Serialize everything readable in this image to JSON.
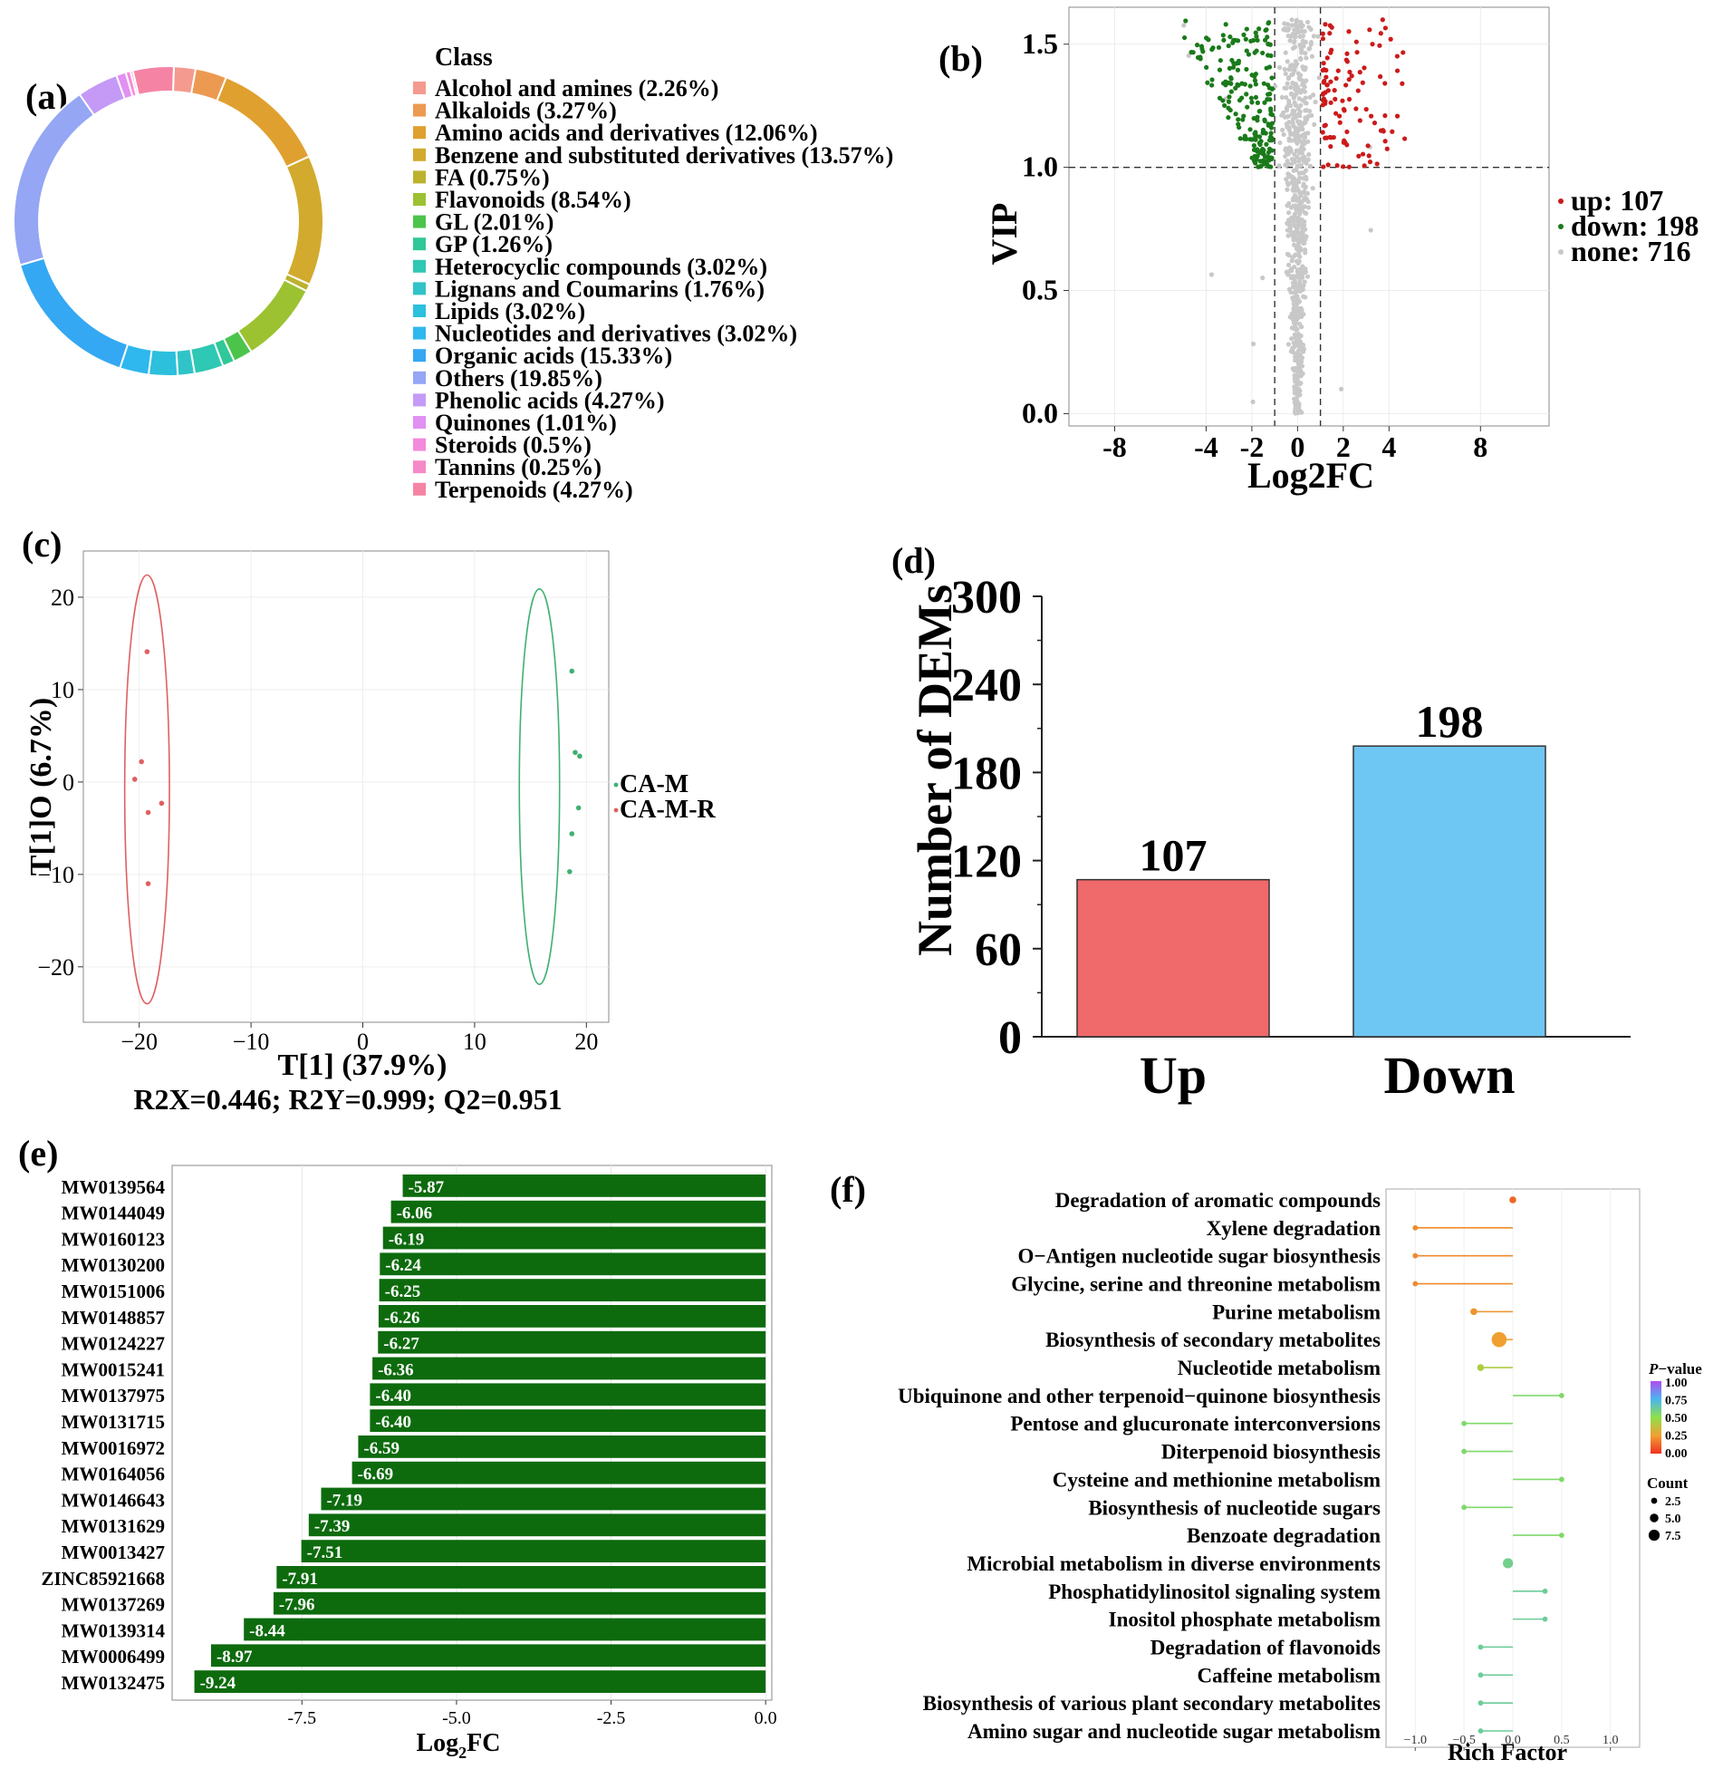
{
  "panel_labels": {
    "a": "(a)",
    "b": "(b)",
    "c": "(c)",
    "d": "(d)",
    "e": "(e)",
    "f": "(f)"
  },
  "colors": {
    "up": "#cc1a1a",
    "down": "#1a7a1a",
    "none": "#c8c8c8",
    "bar_up": "#f0696b",
    "bar_down": "#6ec6f2",
    "bar_green": "#0d6b0d",
    "ellipse_a": "#e06060",
    "ellipse_b": "#40b070"
  },
  "chart_data": [
    {
      "id": "a",
      "type": "pie",
      "variant": "donut",
      "legend_title": "Class",
      "labels": [
        "Alcohol and amines (2.26%)",
        "Alkaloids (3.27%)",
        "Amino acids and derivatives (12.06%)",
        "Benzene and substituted derivatives (13.57%)",
        "FA (0.75%)",
        "Flavonoids (8.54%)",
        "GL (2.01%)",
        "GP (1.26%)",
        "Heterocyclic compounds (3.02%)",
        "Lignans and Coumarins (1.76%)",
        "Lipids (3.02%)",
        "Nucleotides and derivatives (3.02%)",
        "Organic acids (15.33%)",
        "Others (19.85%)",
        "Phenolic acids (4.27%)",
        "Quinones (1.01%)",
        "Steroids (0.5%)",
        "Tannins (0.25%)",
        "Terpenoids (4.27%)"
      ],
      "values": [
        2.26,
        3.27,
        12.06,
        13.57,
        0.75,
        8.54,
        2.01,
        1.26,
        3.02,
        1.76,
        3.02,
        3.02,
        15.33,
        19.85,
        4.27,
        1.01,
        0.5,
        0.25,
        4.27
      ],
      "colors": [
        "#f59a8f",
        "#ec9a52",
        "#e0a030",
        "#d2aa2e",
        "#bcb22e",
        "#9cc232",
        "#4cc44c",
        "#30c898",
        "#2ec8b4",
        "#30c4c8",
        "#2cc0dc",
        "#2eb8ee",
        "#34a8f2",
        "#94a6f4",
        "#c49af6",
        "#e290f2",
        "#f48adc",
        "#f68ac8",
        "#f584a4"
      ]
    },
    {
      "id": "b",
      "type": "scatter",
      "title": "",
      "xlabel": "Log2FC",
      "ylabel": "VIP",
      "xlim": [
        -10,
        11
      ],
      "ylim": [
        -0.05,
        1.65
      ],
      "xticks": [
        -8,
        -4,
        -2,
        0,
        2,
        4,
        8
      ],
      "xtick_labels": [
        "-8",
        "-4",
        "-2",
        "0",
        "2",
        "4",
        "8"
      ],
      "yticks": [
        0.0,
        0.5,
        1.0,
        1.5
      ],
      "ytick_labels": [
        "0.0",
        "0.5",
        "1.0",
        "1.5"
      ],
      "thresholds": {
        "x": [
          -1,
          1
        ],
        "y": 1.0
      },
      "legend": [
        {
          "label": "up: 107",
          "group": "up"
        },
        {
          "label": "down: 198",
          "group": "down"
        },
        {
          "label": "none: 716",
          "group": "none"
        }
      ],
      "series": [
        {
          "name": "up",
          "count": 107
        },
        {
          "name": "down",
          "count": 198
        },
        {
          "name": "none",
          "count": 716
        }
      ]
    },
    {
      "id": "c",
      "type": "scatter",
      "title": "",
      "xlabel": "T[1] (37.9%)",
      "ylabel": "T[1]O (6.7%)",
      "caption": "R2X=0.446; R2Y=0.999; Q2=0.951",
      "xlim": [
        -25,
        22
      ],
      "ylim": [
        -26,
        25
      ],
      "xticks": [
        -20,
        -10,
        0,
        10,
        20
      ],
      "xtick_labels": [
        "−20",
        "−10",
        "0",
        "10",
        "20"
      ],
      "yticks": [
        -20,
        -10,
        0,
        10,
        20
      ],
      "ytick_labels": [
        "−20",
        "−10",
        "0",
        "10",
        "20"
      ],
      "series": [
        {
          "name": "CA-M",
          "x": [
            18.7,
            19.0,
            19.4,
            19.3,
            18.7,
            18.5
          ],
          "y": [
            12.0,
            3.2,
            2.8,
            -2.8,
            -5.6,
            -9.7
          ],
          "ellipse": {
            "cx": 15.8,
            "cy": -0.5,
            "rx": 1.8,
            "ry": 21.4
          }
        },
        {
          "name": "CA-M-R",
          "x": [
            -19.3,
            -19.8,
            -20.4,
            -19.2,
            -18.0,
            -19.2
          ],
          "y": [
            14.1,
            2.2,
            0.3,
            -3.3,
            -2.3,
            -11.0
          ],
          "ellipse": {
            "cx": -19.3,
            "cy": -0.8,
            "rx": 2.0,
            "ry": 23.2
          }
        }
      ]
    },
    {
      "id": "d",
      "type": "bar",
      "title": "",
      "xlabel": "",
      "ylabel": "Number of DEMs",
      "categories": [
        "Up",
        "Down"
      ],
      "values": [
        107,
        198
      ],
      "value_labels": [
        "107",
        "198"
      ],
      "ylim": [
        0,
        300
      ],
      "yticks": [
        0,
        60,
        120,
        180,
        240,
        300
      ]
    },
    {
      "id": "e",
      "type": "bar",
      "orientation": "horizontal",
      "title": "",
      "xlabel": "Log",
      "xlabel_sub": "2",
      "xlabel_suffix": "FC",
      "xlim": [
        -9.6,
        0.1
      ],
      "xticks": [
        -7.5,
        -5.0,
        -2.5,
        0.0
      ],
      "xtick_labels": [
        "-7.5",
        "-5.0",
        "-2.5",
        "0.0"
      ],
      "categories": [
        "MW0139564",
        "MW0144049",
        "MW0160123",
        "MW0130200",
        "MW0151006",
        "MW0148857",
        "MW0124227",
        "MW0015241",
        "MW0137975",
        "MW0131715",
        "MW0016972",
        "MW0164056",
        "MW0146643",
        "MW0131629",
        "MW0013427",
        "ZINC85921668",
        "MW0137269",
        "MW0139314",
        "MW0006499",
        "MW0132475"
      ],
      "values": [
        -5.87,
        -6.06,
        -6.19,
        -6.24,
        -6.25,
        -6.26,
        -6.27,
        -6.36,
        -6.4,
        -6.4,
        -6.59,
        -6.69,
        -7.19,
        -7.39,
        -7.51,
        -7.91,
        -7.96,
        -8.44,
        -8.97,
        -9.24
      ],
      "value_labels": [
        "-5.87",
        "-6.06",
        "-6.19",
        "-6.24",
        "-6.25",
        "-6.26",
        "-6.27",
        "-6.36",
        "-6.40",
        "-6.40",
        "-6.59",
        "-6.69",
        "-7.19",
        "-7.39",
        "-7.51",
        "-7.91",
        "-7.96",
        "-8.44",
        "-8.97",
        "-9.24"
      ]
    },
    {
      "id": "f",
      "type": "scatter",
      "variant": "lollipop",
      "title": "",
      "xlabel": "Rich Factor",
      "xlim": [
        -1.3,
        1.3
      ],
      "xticks": [
        -1.0,
        -0.5,
        0.0,
        0.5,
        1.0
      ],
      "xtick_labels": [
        "−1.0",
        "−0.5",
        "0.0",
        "0.5",
        "1.0"
      ],
      "categories": [
        "Degradation of aromatic compounds",
        "Xylene degradation",
        "O−Antigen nucleotide sugar biosynthesis",
        "Glycine, serine and threonine metabolism",
        "Purine metabolism",
        "Biosynthesis of secondary metabolites",
        "Nucleotide metabolism",
        "Ubiquinone and other terpenoid−quinone biosynthesis",
        "Pentose and glucuronate interconversions",
        "Diterpenoid biosynthesis",
        "Cysteine and methionine metabolism",
        "Biosynthesis of nucleotide sugars",
        "Benzoate degradation",
        "Microbial metabolism in diverse environments",
        "Phosphatidylinositol signaling system",
        "Inositol phosphate metabolism",
        "Degradation of flavonoids",
        "Caffeine metabolism",
        "Biosynthesis of various plant secondary metabolites",
        "Amino sugar and nucleotide sugar metabolism"
      ],
      "rich_factor": [
        0.0,
        -1.0,
        -1.0,
        -1.0,
        -0.4,
        -0.14,
        -0.33,
        0.5,
        -0.5,
        -0.5,
        0.5,
        -0.5,
        0.5,
        -0.05,
        0.33,
        0.33,
        -0.33,
        -0.33,
        -0.33,
        -0.33
      ],
      "count": [
        2,
        1,
        1,
        1,
        2,
        7,
        2,
        1,
        1,
        1,
        1,
        1,
        1,
        4,
        1,
        1,
        1,
        1,
        1,
        1
      ],
      "p_value": [
        0.12,
        0.2,
        0.2,
        0.2,
        0.22,
        0.25,
        0.42,
        0.55,
        0.55,
        0.55,
        0.55,
        0.55,
        0.55,
        0.6,
        0.62,
        0.62,
        0.62,
        0.62,
        0.62,
        0.62
      ],
      "legend": {
        "color_title_italic": "P",
        "color_title_rest": "−value",
        "color_ticks": [
          "1.00",
          "0.75",
          "0.50",
          "0.25",
          "0.00"
        ],
        "size_title": "Count",
        "size_labels": [
          "2.5",
          "5.0",
          "7.5"
        ],
        "size_values": [
          2.5,
          5.0,
          7.5
        ]
      }
    }
  ]
}
